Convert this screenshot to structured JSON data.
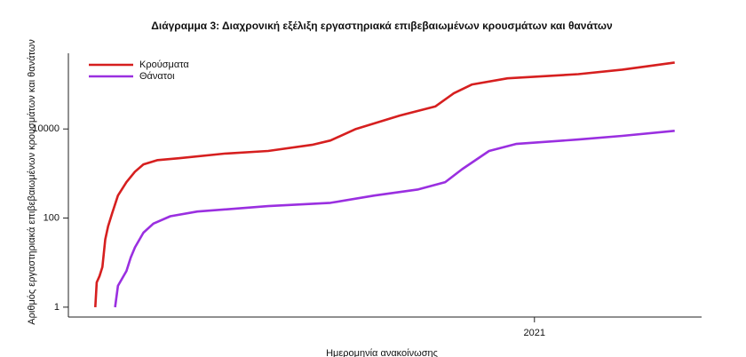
{
  "chart_data": {
    "type": "line",
    "title": "Διάγραμμα 3: Διαχρονική εξέλιξη εργαστηριακά επιβεβαιωμένων κρουσμάτων και θανάτων",
    "y_label": "Αριθμός εργαστηριακά επιβεβαιωμένων κρουσμάτων και θανάτων",
    "x_label": "Ημερομηνία ανακοίνωσης",
    "log_scale_y": true,
    "legend": "top-left",
    "xlim": [
      -19,
      428
    ],
    "xticks": [
      {
        "value": 310,
        "label": "2021"
      }
    ],
    "ylim": [
      0.6,
      500000
    ],
    "yticks": [
      1,
      100,
      10000
    ],
    "series": [
      {
        "name": "Κρούσματα",
        "color": "#d61f1f",
        "x": [
          0,
          1,
          3,
          5,
          7,
          9,
          12,
          16,
          22,
          28,
          34,
          44,
          59,
          91,
          122,
          153,
          166,
          184,
          215,
          240,
          253,
          266,
          291,
          341,
          372,
          409
        ],
        "values": [
          1,
          3.6,
          5,
          8,
          33,
          65,
          130,
          320,
          640,
          1100,
          1600,
          2000,
          2200,
          2800,
          3200,
          4400,
          5500,
          10000,
          20000,
          32000,
          63000,
          100000,
          137000,
          170000,
          215000,
          310000
        ]
      },
      {
        "name": "Θάνατοι",
        "color": "#9a2fe0",
        "x": [
          14,
          16,
          22,
          25,
          28,
          34,
          41,
          53,
          72,
          122,
          166,
          197,
          228,
          247,
          259,
          278,
          297,
          341,
          372,
          409
        ],
        "values": [
          1,
          3,
          6.5,
          13,
          22,
          47,
          75,
          110,
          140,
          185,
          220,
          320,
          440,
          640,
          1250,
          3200,
          4600,
          5800,
          7000,
          9100
        ]
      }
    ]
  }
}
